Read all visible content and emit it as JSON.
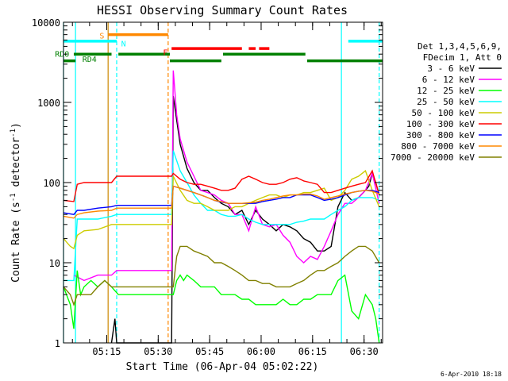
{
  "chart_data": {
    "type": "line",
    "title": "HESSI Observing Summary Count Rates",
    "xlabel": "Start Time (06-Apr-04 05:02:22)",
    "ylabel_main": "Count Rate (s",
    "ylabel_sup1": "-1",
    "ylabel_mid": " detector",
    "ylabel_sup2": "-1",
    "ylabel_end": ")",
    "y_log": true,
    "ylim": [
      1,
      10000
    ],
    "xlim": [
      0,
      93
    ],
    "y_ticks": [
      {
        "value": 1,
        "label": "1"
      },
      {
        "value": 10,
        "label": "10"
      },
      {
        "value": 100,
        "label": "100"
      },
      {
        "value": 1000,
        "label": "1000"
      },
      {
        "value": 10000,
        "label": "10000"
      }
    ],
    "x_ticks": [
      {
        "value": 12.6,
        "label": "05:15"
      },
      {
        "value": 27.6,
        "label": "05:30"
      },
      {
        "value": 42.6,
        "label": "05:45"
      },
      {
        "value": 57.6,
        "label": "06:00"
      },
      {
        "value": 72.6,
        "label": "06:15"
      },
      {
        "value": 87.6,
        "label": "06:30"
      }
    ],
    "legend_header": [
      "Det 1,3,4,5,6,9,",
      "FDecim 1, Att 0"
    ],
    "footer_date": "6-Apr-2010 18:18",
    "series": [
      {
        "name": "3 - 6 keV",
        "color": "#000000",
        "x": [
          14,
          15,
          15.5,
          16,
          31.5,
          32,
          33,
          34,
          36,
          38,
          40,
          42,
          44,
          46,
          48,
          50,
          52,
          54,
          56,
          58,
          60,
          62,
          64,
          66,
          68,
          70,
          72,
          74,
          76,
          78,
          80,
          82,
          84,
          86,
          88,
          89,
          90,
          91,
          92
        ],
        "y": [
          1,
          2,
          1,
          1,
          1,
          1200,
          600,
          300,
          150,
          100,
          80,
          80,
          65,
          55,
          50,
          40,
          45,
          30,
          45,
          35,
          30,
          25,
          30,
          28,
          25,
          20,
          18,
          14,
          14,
          16,
          50,
          75,
          60,
          65,
          80,
          90,
          130,
          100,
          70
        ]
      },
      {
        "name": "6 - 12 keV",
        "color": "#ff00ff",
        "x": [
          3,
          6,
          10,
          14,
          15.5,
          31.5,
          32,
          33,
          34,
          36,
          38,
          40,
          42,
          44,
          46,
          48,
          50,
          52,
          54,
          56,
          58,
          60,
          62,
          64,
          66,
          68,
          70,
          72,
          74,
          76,
          78,
          80,
          82,
          84,
          86,
          88,
          90,
          92
        ],
        "y": [
          7,
          6,
          7,
          7,
          8,
          8,
          2500,
          700,
          350,
          180,
          120,
          80,
          75,
          70,
          60,
          55,
          40,
          40,
          25,
          50,
          30,
          28,
          30,
          22,
          18,
          12,
          10,
          12,
          11,
          16,
          25,
          40,
          55,
          55,
          65,
          80,
          130,
          55
        ]
      },
      {
        "name": "12 - 25 keV",
        "color": "#00ff00",
        "x": [
          0,
          2,
          3,
          4,
          5,
          6,
          8,
          10,
          12,
          14,
          16,
          32,
          33,
          34,
          35,
          36,
          38,
          40,
          42,
          44,
          46,
          48,
          50,
          52,
          54,
          56,
          58,
          60,
          62,
          64,
          66,
          68,
          70,
          72,
          74,
          76,
          78,
          80,
          82,
          84,
          86,
          88,
          90,
          91,
          92
        ],
        "y": [
          5,
          3,
          1.5,
          8,
          4,
          5,
          6,
          5,
          6,
          5,
          4,
          4,
          6,
          7,
          6,
          7,
          6,
          5,
          5,
          5,
          4,
          4,
          4,
          3.5,
          3.5,
          3,
          3,
          3,
          3,
          3.5,
          3,
          3,
          3.5,
          3.5,
          4,
          4,
          4,
          6,
          7,
          2.5,
          2,
          4,
          3,
          2,
          1
        ]
      },
      {
        "name": "25 - 50 keV",
        "color": "#00ffff",
        "x": [
          0,
          3,
          4,
          6,
          10,
          14,
          15.5,
          31.5,
          32,
          34,
          36,
          38,
          40,
          42,
          44,
          46,
          48,
          50,
          52,
          54,
          56,
          58,
          60,
          62,
          64,
          66,
          68,
          70,
          72,
          74,
          76,
          78,
          80,
          82,
          84,
          86,
          88,
          90,
          92
        ],
        "y": [
          6,
          6,
          35,
          35,
          35,
          38,
          40,
          40,
          250,
          140,
          100,
          70,
          55,
          45,
          45,
          40,
          38,
          38,
          40,
          35,
          32,
          30,
          30,
          30,
          30,
          30,
          32,
          33,
          35,
          35,
          35,
          40,
          45,
          50,
          60,
          65,
          65,
          65,
          60
        ]
      },
      {
        "name": "50 - 100 keV",
        "color": "#cccc00",
        "x": [
          0,
          2,
          3,
          4,
          6,
          10,
          14,
          15.5,
          31.5,
          32,
          34,
          36,
          38,
          40,
          42,
          44,
          46,
          48,
          50,
          52,
          54,
          56,
          58,
          60,
          62,
          64,
          66,
          68,
          70,
          72,
          74,
          76,
          78,
          80,
          82,
          84,
          86,
          88,
          90,
          92
        ],
        "y": [
          20,
          16,
          15,
          22,
          25,
          26,
          30,
          30,
          30,
          120,
          80,
          60,
          55,
          55,
          50,
          45,
          45,
          45,
          50,
          50,
          55,
          60,
          65,
          70,
          70,
          65,
          70,
          70,
          75,
          75,
          80,
          85,
          60,
          65,
          80,
          110,
          120,
          140,
          80,
          50
        ]
      },
      {
        "name": "100 - 300 keV",
        "color": "#ff0000",
        "x": [
          0,
          3,
          4,
          6,
          10,
          14,
          15.5,
          31.5,
          32,
          34,
          36,
          38,
          40,
          42,
          44,
          46,
          48,
          50,
          52,
          54,
          56,
          58,
          60,
          62,
          64,
          66,
          68,
          70,
          72,
          74,
          76,
          78,
          80,
          82,
          84,
          86,
          88,
          90,
          92
        ],
        "y": [
          60,
          58,
          95,
          100,
          100,
          100,
          120,
          120,
          130,
          110,
          100,
          95,
          95,
          90,
          85,
          80,
          80,
          85,
          110,
          120,
          110,
          100,
          95,
          95,
          100,
          110,
          115,
          105,
          100,
          95,
          75,
          75,
          80,
          85,
          90,
          95,
          100,
          140,
          70
        ]
      },
      {
        "name": "300 - 800 keV",
        "color": "#0000ff",
        "x": [
          0,
          3,
          4,
          6,
          10,
          14,
          15.5,
          31.5,
          32,
          34,
          36,
          38,
          40,
          42,
          44,
          46,
          48,
          50,
          52,
          54,
          56,
          58,
          60,
          62,
          64,
          66,
          68,
          70,
          72,
          74,
          76,
          78,
          80,
          82,
          84,
          86,
          88,
          90,
          92
        ],
        "y": [
          42,
          40,
          45,
          45,
          48,
          50,
          52,
          52,
          90,
          85,
          80,
          75,
          70,
          65,
          60,
          57,
          55,
          55,
          55,
          55,
          55,
          58,
          60,
          62,
          65,
          65,
          70,
          70,
          70,
          65,
          60,
          62,
          65,
          70,
          75,
          78,
          80,
          80,
          75
        ]
      },
      {
        "name": "800 - 7000 keV",
        "color": "#ff8800",
        "x": [
          0,
          3,
          4,
          6,
          10,
          14,
          15.5,
          31.5,
          32,
          34,
          36,
          38,
          40,
          42,
          44,
          46,
          48,
          50,
          52,
          54,
          56,
          58,
          60,
          62,
          64,
          66,
          68,
          70,
          72,
          74,
          76,
          78,
          80,
          82,
          84,
          86,
          88,
          90,
          92
        ],
        "y": [
          38,
          36,
          40,
          42,
          44,
          45,
          48,
          48,
          90,
          85,
          80,
          75,
          70,
          65,
          60,
          58,
          55,
          55,
          55,
          56,
          57,
          60,
          62,
          65,
          68,
          70,
          70,
          72,
          72,
          68,
          62,
          65,
          68,
          72,
          75,
          78,
          80,
          78,
          72
        ]
      },
      {
        "name": "7000 - 20000 keV",
        "color": "#808000",
        "x": [
          0,
          2,
          3,
          4,
          6,
          8,
          10,
          12,
          14,
          16,
          32,
          33,
          34,
          36,
          38,
          40,
          42,
          44,
          46,
          48,
          50,
          52,
          54,
          56,
          58,
          60,
          62,
          64,
          66,
          68,
          70,
          72,
          74,
          76,
          78,
          80,
          82,
          84,
          86,
          88,
          90,
          92
        ],
        "y": [
          5,
          4,
          3,
          4,
          4,
          4,
          5,
          6,
          5,
          5,
          5,
          12,
          16,
          16,
          14,
          13,
          12,
          10,
          10,
          9,
          8,
          7,
          6,
          6,
          5.5,
          5.5,
          5,
          5,
          5,
          5.5,
          6,
          7,
          8,
          8,
          9,
          10,
          12,
          14,
          16,
          16,
          14,
          10
        ]
      }
    ],
    "annotations": {
      "labels": [
        {
          "text": "S",
          "x": 10.5,
          "y": 6300,
          "color": "#ff8800"
        },
        {
          "text": "N",
          "x": 16.8,
          "y": 5000,
          "color": "#00ffff"
        },
        {
          "text": "F",
          "x": 29,
          "y": 3900,
          "color": "#ff0000"
        },
        {
          "text": "RD0",
          "x": -2.5,
          "y": 3700,
          "color": "#008000"
        },
        {
          "text": "RD4",
          "x": 5.5,
          "y": 3200,
          "color": "#008000"
        }
      ],
      "bars": [
        {
          "x1": 13,
          "x2": 30.5,
          "y": 7000,
          "color": "#ff8800"
        },
        {
          "x1": 0,
          "x2": 15.5,
          "y": 5800,
          "color": "#00ffff"
        },
        {
          "x1": 83,
          "x2": 93,
          "y": 5800,
          "color": "#00ffff"
        },
        {
          "x1": 31.5,
          "x2": 52,
          "y": 4700,
          "color": "#ff0000"
        },
        {
          "x1": 54,
          "x2": 56,
          "y": 4700,
          "color": "#ff0000"
        },
        {
          "x1": 57,
          "x2": 60,
          "y": 4700,
          "color": "#ff0000"
        },
        {
          "x1": 3,
          "x2": 14,
          "y": 4000,
          "color": "#008000"
        },
        {
          "x1": 16,
          "x2": 31,
          "y": 4000,
          "color": "#008000"
        },
        {
          "x1": 46.5,
          "x2": 70.5,
          "y": 4000,
          "color": "#008000"
        },
        {
          "x1": 0,
          "x2": 3.5,
          "y": 3300,
          "color": "#008000"
        },
        {
          "x1": 31,
          "x2": 46,
          "y": 3300,
          "color": "#008000"
        },
        {
          "x1": 71,
          "x2": 93,
          "y": 3300,
          "color": "#008000"
        }
      ],
      "vlines": [
        {
          "x": 0,
          "color": "#00ffff",
          "dashed": false
        },
        {
          "x": 3.5,
          "color": "#00ffff",
          "dashed": false
        },
        {
          "x": 13,
          "color": "#cc8800",
          "dashed": false
        },
        {
          "x": 15.5,
          "color": "#00ffff",
          "dashed": true
        },
        {
          "x": 30.5,
          "color": "#ff8800",
          "dashed": true
        },
        {
          "x": 81,
          "color": "#00ffff",
          "dashed": false
        },
        {
          "x": 92,
          "color": "#00ffff",
          "dashed": true
        }
      ]
    }
  }
}
